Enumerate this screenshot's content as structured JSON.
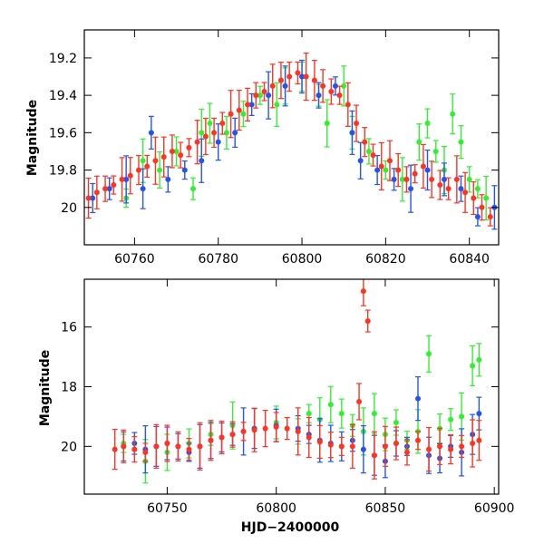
{
  "figure": {
    "panels": [
      {
        "id": "top",
        "ylabel": "Magnitude",
        "xlabel": ""
      },
      {
        "id": "bottom",
        "ylabel": "Magnitude",
        "xlabel": "HJD−2400000"
      }
    ]
  },
  "chart_data": [
    {
      "type": "scatter",
      "title": "",
      "xlabel": "",
      "ylabel": "Magnitude",
      "xlim": [
        60748,
        60847
      ],
      "ylim": [
        20.2,
        19.05
      ],
      "y_inverted": true,
      "x_ticks": [
        60760,
        60780,
        60800,
        60820,
        60840
      ],
      "x_tick_labels": [
        "60760",
        "60780",
        "60800",
        "60820",
        "60840"
      ],
      "y_ticks": [
        19.2,
        19.4,
        19.6,
        19.8,
        20
      ],
      "y_tick_labels": [
        "19.2",
        "19.4",
        "19.6",
        "19.8",
        "20"
      ],
      "grid": false,
      "error_bars": true,
      "series": [
        {
          "color": "#33ee33",
          "x": [
            60758,
            60762,
            60766,
            60770,
            60774,
            60776,
            60778,
            60782,
            60786,
            60790,
            60794,
            60796,
            60800,
            60804,
            60806,
            60810,
            60812,
            60816,
            60820,
            60824,
            60828,
            60830,
            60832,
            60834,
            60836,
            60838,
            60840,
            60842,
            60844
          ],
          "y": [
            19.95,
            19.75,
            19.8,
            19.7,
            19.9,
            19.6,
            19.55,
            19.6,
            19.5,
            19.4,
            19.45,
            19.35,
            19.3,
            19.4,
            19.55,
            19.35,
            19.6,
            19.7,
            19.8,
            19.85,
            19.65,
            19.55,
            19.7,
            19.8,
            19.5,
            19.65,
            19.85,
            19.9,
            19.95
          ]
        },
        {
          "color": "#2255ee",
          "x": [
            60750,
            60754,
            60758,
            60762,
            60764,
            60768,
            60772,
            60776,
            60780,
            60784,
            60788,
            60792,
            60796,
            60800,
            60804,
            60808,
            60812,
            60814,
            60818,
            60822,
            60826,
            60830,
            60834,
            60838,
            60842,
            60846
          ],
          "y": [
            19.95,
            19.9,
            19.85,
            19.9,
            19.6,
            19.85,
            19.8,
            19.75,
            19.65,
            19.6,
            19.45,
            19.4,
            19.35,
            19.3,
            19.4,
            19.35,
            19.6,
            19.75,
            19.8,
            19.85,
            19.9,
            19.8,
            19.85,
            19.9,
            20.05,
            20.0
          ]
        },
        {
          "color": "#ff3322",
          "x": [
            60749,
            60751,
            60753,
            60755,
            60757,
            60759,
            60761,
            60763,
            60765,
            60767,
            60769,
            60771,
            60773,
            60775,
            60777,
            60779,
            60781,
            60783,
            60785,
            60787,
            60789,
            60791,
            60793,
            60795,
            60797,
            60799,
            60801,
            60803,
            60805,
            60807,
            60809,
            60811,
            60813,
            60815,
            60817,
            60819,
            60821,
            60823,
            60825,
            60827,
            60829,
            60831,
            60833,
            60835,
            60837,
            60839,
            60841,
            60843,
            60845
          ],
          "y": [
            19.95,
            19.92,
            19.9,
            19.88,
            19.85,
            19.83,
            19.8,
            19.78,
            19.75,
            19.73,
            19.7,
            19.72,
            19.68,
            19.65,
            19.62,
            19.6,
            19.55,
            19.5,
            19.48,
            19.45,
            19.4,
            19.38,
            19.35,
            19.32,
            19.3,
            19.28,
            19.3,
            19.32,
            19.35,
            19.38,
            19.4,
            19.45,
            19.55,
            19.65,
            19.72,
            19.78,
            19.75,
            19.8,
            19.85,
            19.82,
            19.78,
            19.85,
            19.88,
            19.9,
            19.85,
            19.92,
            19.95,
            20.0,
            20.05
          ]
        }
      ]
    },
    {
      "type": "scatter",
      "title": "",
      "xlabel": "HJD−2400000",
      "ylabel": "Magnitude",
      "xlim": [
        60712,
        60902
      ],
      "ylim": [
        21.6,
        14.4
      ],
      "y_inverted": true,
      "x_ticks": [
        60750,
        60800,
        60850,
        60900
      ],
      "x_tick_labels": [
        "60750",
        "60800",
        "60850",
        "60900"
      ],
      "y_ticks": [
        16,
        18,
        20
      ],
      "y_tick_labels": [
        "16",
        "18",
        "20"
      ],
      "grid": false,
      "error_bars": true,
      "series": [
        {
          "color": "#33ee33",
          "x": [
            60730,
            60740,
            60750,
            60760,
            60770,
            60780,
            60790,
            60800,
            60810,
            60815,
            60820,
            60825,
            60830,
            60835,
            60840,
            60845,
            60850,
            60855,
            60860,
            60865,
            60870,
            60875,
            60880,
            60885,
            60890,
            60893
          ],
          "y": [
            19.9,
            20.5,
            20.2,
            19.9,
            19.6,
            19.3,
            19.4,
            19.2,
            19.5,
            18.9,
            19.1,
            18.6,
            18.9,
            19.3,
            19.5,
            18.9,
            19.6,
            19.2,
            19.8,
            19.5,
            16.9,
            19.4,
            19.1,
            19.0,
            17.3,
            17.1
          ]
        },
        {
          "color": "#2255ee",
          "x": [
            60730,
            60735,
            60740,
            60745,
            60750,
            60755,
            60760,
            60765,
            60770,
            60775,
            60780,
            60785,
            60790,
            60800,
            60810,
            60815,
            60820,
            60825,
            60830,
            60835,
            60840,
            60845,
            60850,
            60855,
            60860,
            60865,
            60870,
            60875,
            60880,
            60885,
            60890,
            60893
          ],
          "y": [
            20.0,
            19.9,
            20.1,
            20.0,
            19.9,
            20.0,
            20.2,
            20.0,
            19.8,
            19.7,
            19.6,
            19.5,
            19.4,
            19.3,
            19.4,
            19.6,
            19.8,
            19.9,
            20.0,
            19.8,
            20.1,
            20.3,
            20.5,
            19.9,
            20.0,
            18.4,
            20.3,
            20.4,
            20.0,
            20.2,
            19.6,
            18.9
          ]
        },
        {
          "color": "#ff3322",
          "x": [
            60726,
            60730,
            60735,
            60740,
            60745,
            60750,
            60755,
            60760,
            60765,
            60770,
            60775,
            60780,
            60785,
            60790,
            60795,
            60800,
            60805,
            60810,
            60815,
            60820,
            60825,
            60830,
            60835,
            60838,
            60840,
            60842,
            60845,
            60850,
            60855,
            60860,
            60865,
            60870,
            60875,
            60880,
            60885,
            60890,
            60893
          ],
          "y": [
            20.1,
            20.0,
            20.1,
            20.2,
            20.0,
            19.9,
            20.0,
            20.1,
            20.0,
            19.8,
            19.7,
            19.6,
            19.5,
            19.45,
            19.4,
            19.35,
            19.4,
            19.5,
            19.7,
            19.85,
            19.95,
            20.0,
            20.0,
            18.5,
            14.8,
            15.8,
            20.3,
            20.0,
            19.9,
            20.2,
            19.8,
            20.1,
            20.0,
            20.1,
            20.0,
            19.9,
            19.8
          ]
        }
      ]
    }
  ]
}
